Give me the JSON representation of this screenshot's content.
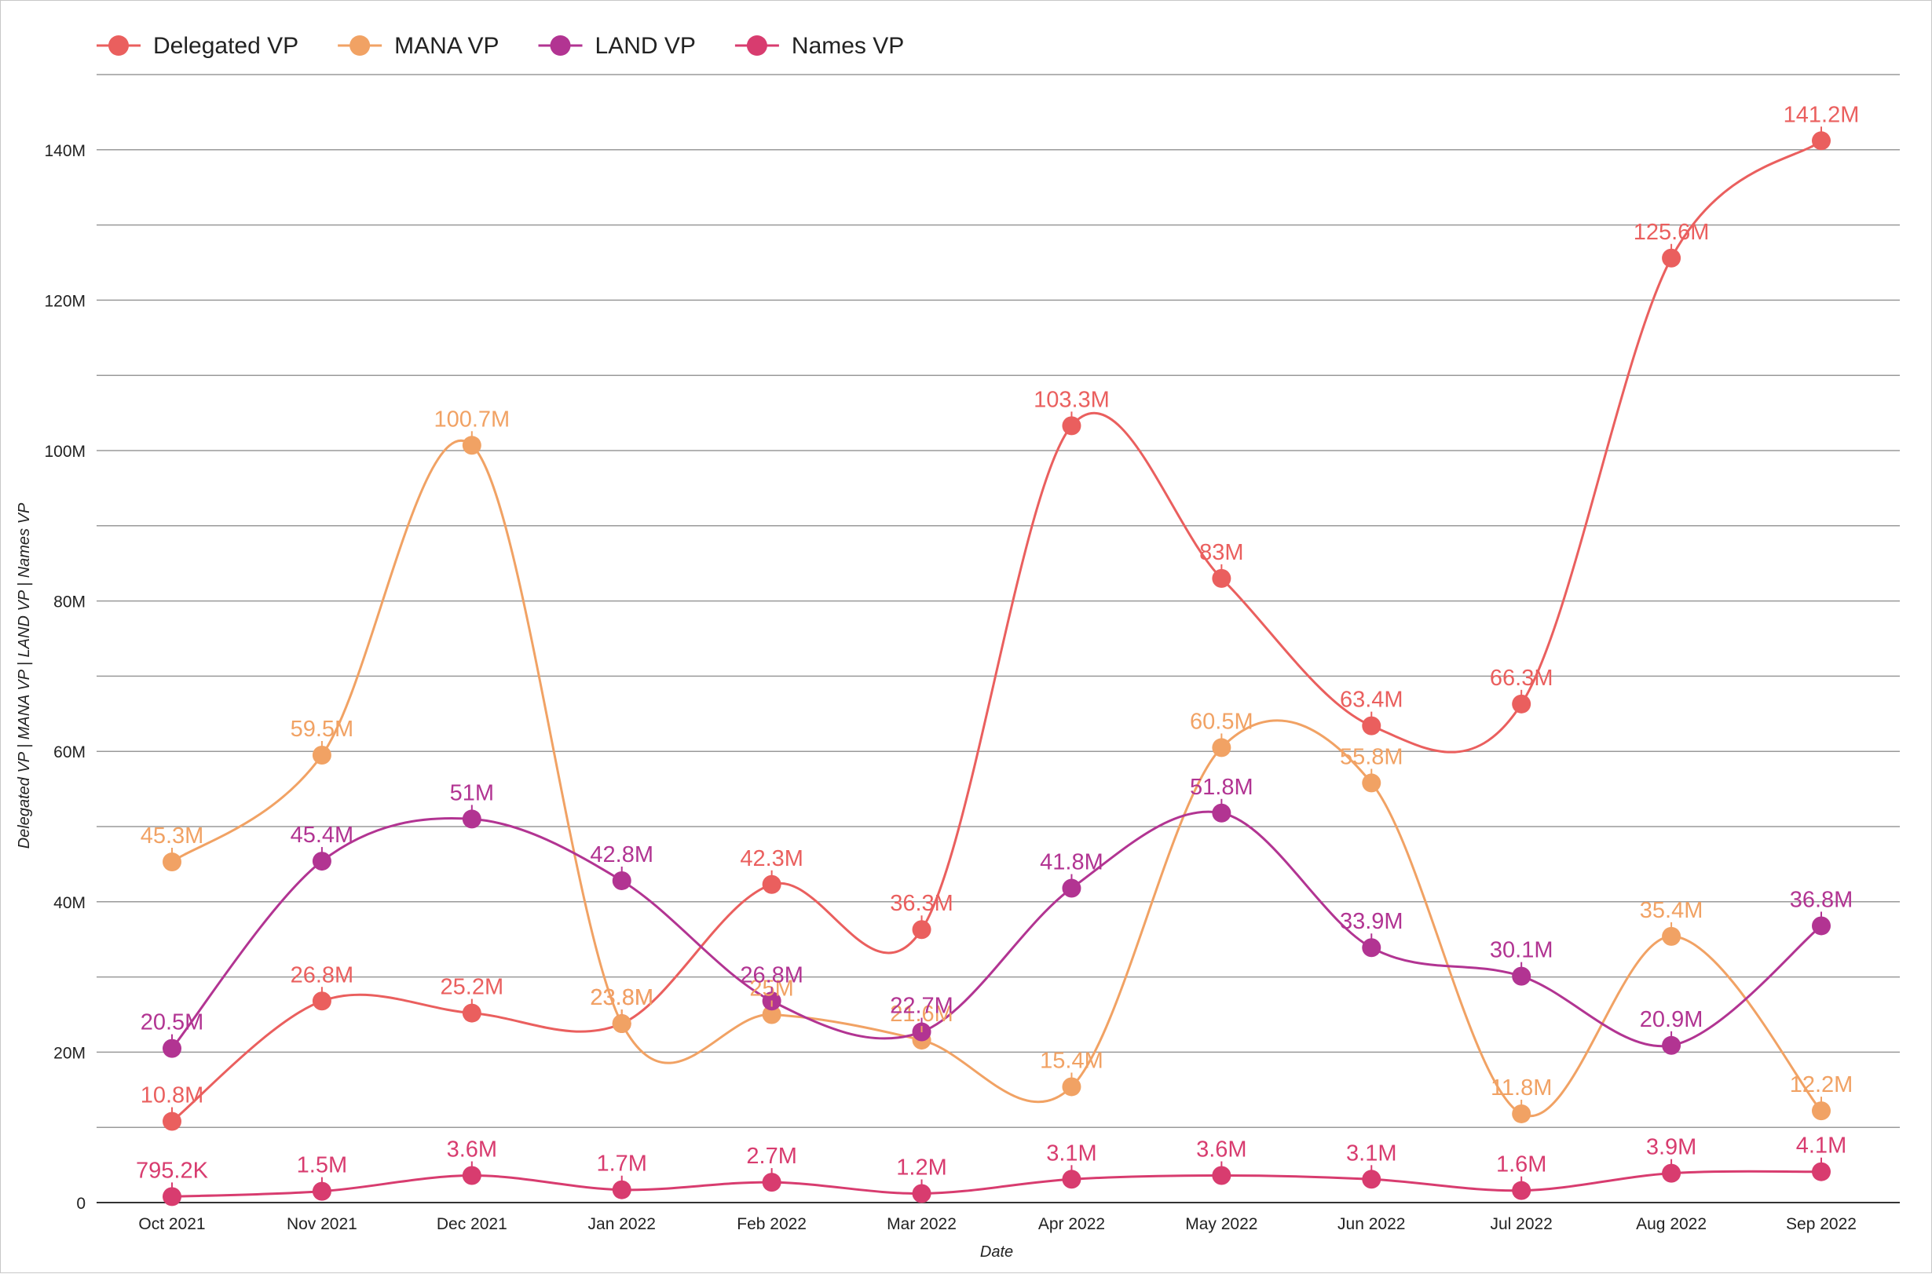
{
  "chart_data": {
    "type": "line",
    "xlabel": "Date",
    "ylabel": "Delegated VP | MANA VP | LAND VP | Names VP",
    "ylim": [
      0,
      150000000
    ],
    "grid": true,
    "legend_position": "top-left",
    "y_ticks": [
      {
        "value": 0,
        "label": "0"
      },
      {
        "value": 20000000,
        "label": "20M"
      },
      {
        "value": 40000000,
        "label": "40M"
      },
      {
        "value": 60000000,
        "label": "60M"
      },
      {
        "value": 80000000,
        "label": "80M"
      },
      {
        "value": 100000000,
        "label": "100M"
      },
      {
        "value": 120000000,
        "label": "120M"
      },
      {
        "value": 140000000,
        "label": "140M"
      }
    ],
    "categories": [
      "Oct 2021",
      "Nov 2021",
      "Dec 2021",
      "Jan 2022",
      "Feb 2022",
      "Mar 2022",
      "Apr 2022",
      "May 2022",
      "Jun 2022",
      "Jul 2022",
      "Aug 2022",
      "Sep 2022"
    ],
    "series": [
      {
        "name": "Delegated VP",
        "color": "#ea5f5e",
        "values": [
          10800000,
          26800000,
          25200000,
          23800000,
          42300000,
          36300000,
          103300000,
          83000000,
          63400000,
          66300000,
          125600000,
          141200000
        ],
        "labels": [
          "10.8M",
          "26.8M",
          "25.2M",
          "23.8M",
          "42.3M",
          "36.3M",
          "103.3M",
          "83M",
          "63.4M",
          "66.3M",
          "125.6M",
          "141.2M"
        ]
      },
      {
        "name": "MANA VP",
        "color": "#f1a264",
        "values": [
          45300000,
          59500000,
          100700000,
          23800000,
          25000000,
          21600000,
          15400000,
          60500000,
          55800000,
          11800000,
          35400000,
          12200000
        ],
        "labels": [
          "45.3M",
          "59.5M",
          "100.7M",
          "23.8M",
          "25M",
          "21.6M",
          "15.4M",
          "60.5M",
          "55.8M",
          "11.8M",
          "35.4M",
          "12.2M"
        ]
      },
      {
        "name": "LAND VP",
        "color": "#b23492",
        "values": [
          20500000,
          45400000,
          51000000,
          42800000,
          26800000,
          22700000,
          41800000,
          51800000,
          33900000,
          30100000,
          20900000,
          36800000
        ],
        "labels": [
          "20.5M",
          "45.4M",
          "51M",
          "42.8M",
          "26.8M",
          "22.7M",
          "41.8M",
          "51.8M",
          "33.9M",
          "30.1M",
          "20.9M",
          "36.8M"
        ]
      },
      {
        "name": "Names VP",
        "color": "#d83c6f",
        "values": [
          795200,
          1500000,
          3600000,
          1700000,
          2700000,
          1200000,
          3100000,
          3600000,
          3100000,
          1600000,
          3900000,
          4100000
        ],
        "labels": [
          "795.2K",
          "1.5M",
          "3.6M",
          "1.7M",
          "2.7M",
          "1.2M",
          "3.1M",
          "3.6M",
          "3.1M",
          "1.6M",
          "3.9M",
          "4.1M"
        ]
      }
    ]
  }
}
